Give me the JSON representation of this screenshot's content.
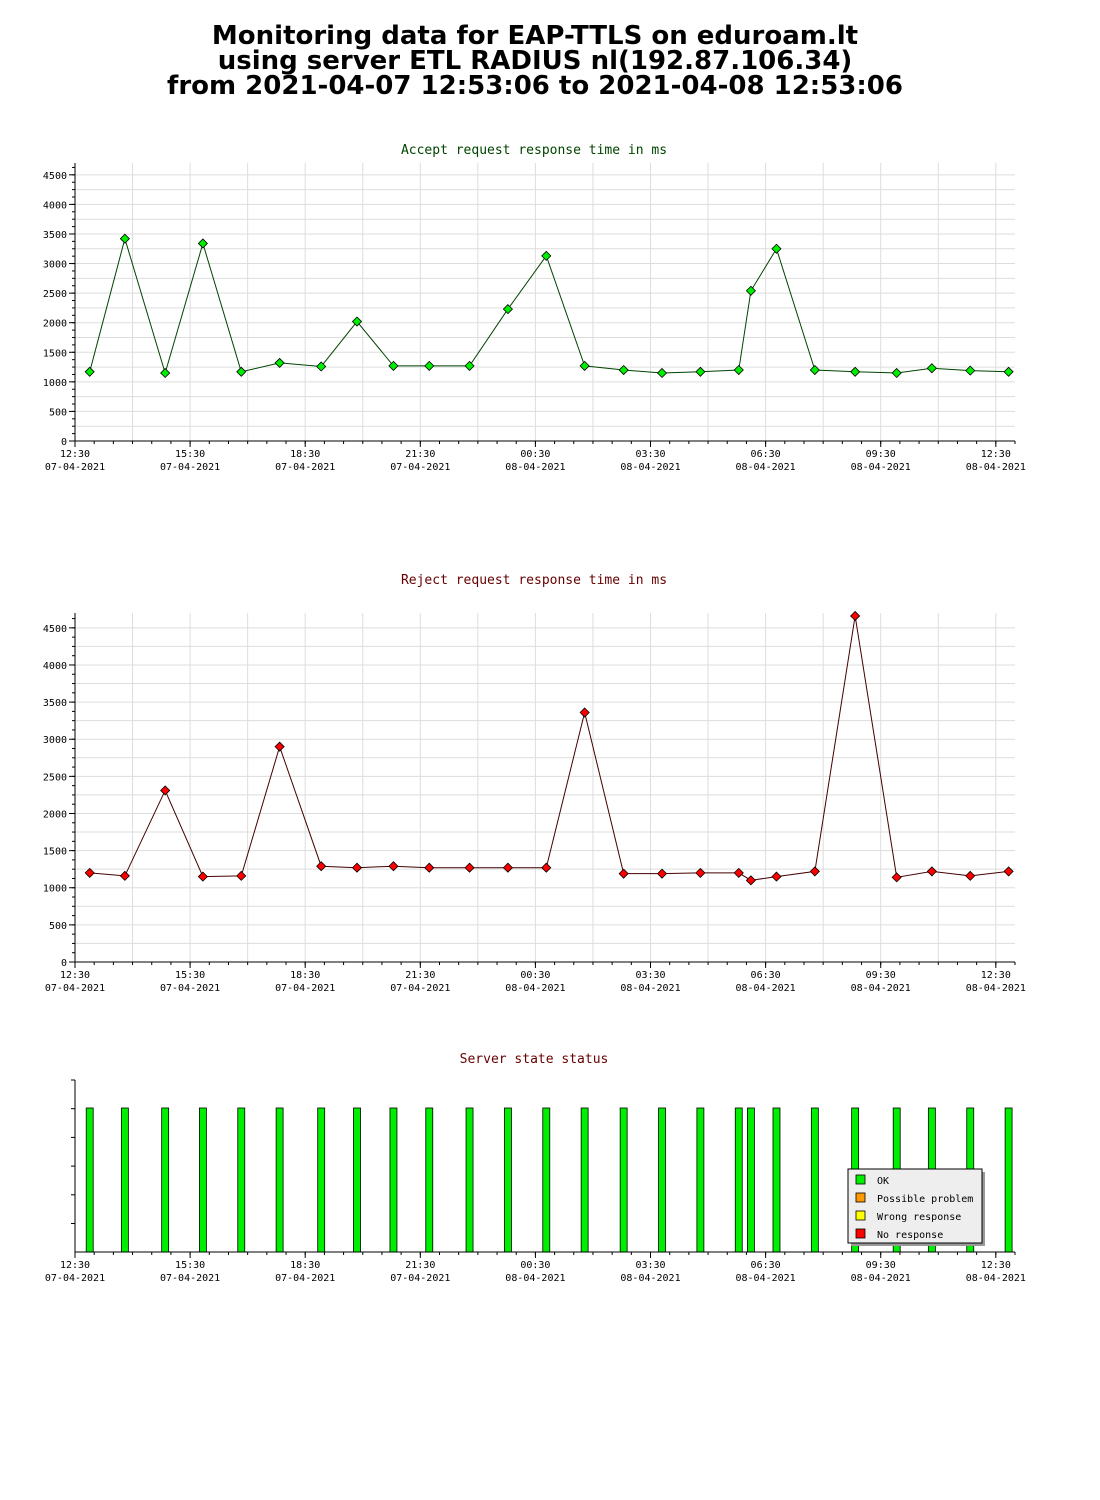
{
  "header": {
    "line1": "Monitoring data for EAP-TTLS on eduroam.lt",
    "line2": "using server ETL RADIUS nl(192.87.106.34)",
    "line3": "from 2021-04-07 12:53:06 to 2021-04-08 12:53:06"
  },
  "colors": {
    "accept_title": "#004400",
    "reject_title": "#660000",
    "status_title": "#660000",
    "accept_marker": "#00ee00",
    "accept_line": "#004400",
    "reject_marker": "#ff0000",
    "reject_line": "#440000",
    "ok": "#00ee00",
    "possible_problem": "#ff9900",
    "wrong_response": "#ffff00",
    "no_response": "#ff0000",
    "grid": "#dddddd"
  },
  "chart_data": [
    {
      "type": "line",
      "title": "Accept request response time in ms",
      "xlabel": "",
      "ylabel": "",
      "ylim": [
        0,
        4700
      ],
      "y_ticks": [
        0,
        500,
        1000,
        1500,
        2000,
        2500,
        3000,
        3500,
        4000,
        4500
      ],
      "x_range_hours": [
        "2021-04-07 12:30",
        "2021-04-08 13:00"
      ],
      "x_ticks": [
        {
          "time": "12:30",
          "date": "07-04-2021"
        },
        {
          "time": "15:30",
          "date": "07-04-2021"
        },
        {
          "time": "18:30",
          "date": "07-04-2021"
        },
        {
          "time": "21:30",
          "date": "07-04-2021"
        },
        {
          "time": "00:30",
          "date": "08-04-2021"
        },
        {
          "time": "03:30",
          "date": "08-04-2021"
        },
        {
          "time": "06:30",
          "date": "08-04-2021"
        },
        {
          "time": "09:30",
          "date": "08-04-2021"
        },
        {
          "time": "12:30",
          "date": "08-04-2021"
        }
      ],
      "grid": true,
      "series": [
        {
          "x": [
            "2021-04-07 12:53",
            "2021-04-07 13:48",
            "2021-04-07 14:51",
            "2021-04-07 15:50",
            "2021-04-07 16:50",
            "2021-04-07 17:50",
            "2021-04-07 18:55",
            "2021-04-07 19:51",
            "2021-04-07 20:48",
            "2021-04-07 21:44",
            "2021-04-07 22:47",
            "2021-04-07 23:47",
            "2021-04-08 00:47",
            "2021-04-08 01:47",
            "2021-04-08 02:48",
            "2021-04-08 03:48",
            "2021-04-08 04:48",
            "2021-04-08 05:48",
            "2021-04-08 06:07",
            "2021-04-08 06:47",
            "2021-04-08 07:47",
            "2021-04-08 08:50",
            "2021-04-08 09:55",
            "2021-04-08 10:50",
            "2021-04-08 11:50",
            "2021-04-08 12:50"
          ],
          "values": [
            1170,
            3420,
            1150,
            3340,
            1170,
            1320,
            1260,
            2020,
            1270,
            1270,
            1270,
            2230,
            3130,
            1270,
            1200,
            1150,
            1170,
            1200,
            2540,
            3250,
            1200,
            1170,
            1150,
            1230,
            1190,
            1170
          ]
        }
      ]
    },
    {
      "type": "line",
      "title": "Reject request response time in ms",
      "xlabel": "",
      "ylabel": "",
      "ylim": [
        0,
        4700
      ],
      "y_ticks": [
        0,
        500,
        1000,
        1500,
        2000,
        2500,
        3000,
        3500,
        4000,
        4500
      ],
      "x_range_hours": [
        "2021-04-07 12:30",
        "2021-04-08 13:00"
      ],
      "x_ticks": [
        {
          "time": "12:30",
          "date": "07-04-2021"
        },
        {
          "time": "15:30",
          "date": "07-04-2021"
        },
        {
          "time": "18:30",
          "date": "07-04-2021"
        },
        {
          "time": "21:30",
          "date": "07-04-2021"
        },
        {
          "time": "00:30",
          "date": "08-04-2021"
        },
        {
          "time": "03:30",
          "date": "08-04-2021"
        },
        {
          "time": "06:30",
          "date": "08-04-2021"
        },
        {
          "time": "09:30",
          "date": "08-04-2021"
        },
        {
          "time": "12:30",
          "date": "08-04-2021"
        }
      ],
      "grid": true,
      "series": [
        {
          "x": [
            "2021-04-07 12:53",
            "2021-04-07 13:48",
            "2021-04-07 14:51",
            "2021-04-07 15:50",
            "2021-04-07 16:50",
            "2021-04-07 17:50",
            "2021-04-07 18:55",
            "2021-04-07 19:51",
            "2021-04-07 20:48",
            "2021-04-07 21:44",
            "2021-04-07 22:47",
            "2021-04-07 23:47",
            "2021-04-08 00:47",
            "2021-04-08 01:47",
            "2021-04-08 02:48",
            "2021-04-08 03:48",
            "2021-04-08 04:48",
            "2021-04-08 05:48",
            "2021-04-08 06:07",
            "2021-04-08 06:47",
            "2021-04-08 07:47",
            "2021-04-08 08:50",
            "2021-04-08 09:55",
            "2021-04-08 10:50",
            "2021-04-08 11:50",
            "2021-04-08 12:50"
          ],
          "values": [
            1200,
            1160,
            2310,
            1150,
            1160,
            2900,
            1290,
            1270,
            1290,
            1270,
            1270,
            1270,
            1270,
            3360,
            1190,
            1190,
            1200,
            1200,
            1100,
            1150,
            1220,
            4660,
            1140,
            1220,
            1160,
            1220
          ]
        }
      ]
    },
    {
      "type": "bar",
      "title": "Server state status",
      "xlabel": "",
      "ylabel": "",
      "x_range_hours": [
        "2021-04-07 12:30",
        "2021-04-08 13:00"
      ],
      "x_ticks": [
        {
          "time": "12:30",
          "date": "07-04-2021"
        },
        {
          "time": "15:30",
          "date": "07-04-2021"
        },
        {
          "time": "18:30",
          "date": "07-04-2021"
        },
        {
          "time": "21:30",
          "date": "07-04-2021"
        },
        {
          "time": "00:30",
          "date": "08-04-2021"
        },
        {
          "time": "03:30",
          "date": "08-04-2021"
        },
        {
          "time": "06:30",
          "date": "08-04-2021"
        },
        {
          "time": "09:30",
          "date": "08-04-2021"
        },
        {
          "time": "12:30",
          "date": "08-04-2021"
        }
      ],
      "grid": false,
      "legend_position": "bottom-right",
      "legend": [
        {
          "label": "OK",
          "color": "#00ee00"
        },
        {
          "label": "Possible problem",
          "color": "#ff9900"
        },
        {
          "label": "Wrong response",
          "color": "#ffff00"
        },
        {
          "label": "No response",
          "color": "#ff0000"
        }
      ],
      "series": [
        {
          "name": "OK",
          "x": [
            "2021-04-07 12:53",
            "2021-04-07 13:48",
            "2021-04-07 14:51",
            "2021-04-07 15:50",
            "2021-04-07 16:50",
            "2021-04-07 17:50",
            "2021-04-07 18:55",
            "2021-04-07 19:51",
            "2021-04-07 20:48",
            "2021-04-07 21:44",
            "2021-04-07 22:47",
            "2021-04-07 23:47",
            "2021-04-08 00:47",
            "2021-04-08 01:47",
            "2021-04-08 02:48",
            "2021-04-08 03:48",
            "2021-04-08 04:48",
            "2021-04-08 05:48",
            "2021-04-08 06:07",
            "2021-04-08 06:47",
            "2021-04-08 07:47",
            "2021-04-08 08:50",
            "2021-04-08 09:55",
            "2021-04-08 10:50",
            "2021-04-08 11:50",
            "2021-04-08 12:50"
          ],
          "status": [
            "OK",
            "OK",
            "OK",
            "OK",
            "OK",
            "OK",
            "OK",
            "OK",
            "OK",
            "OK",
            "OK",
            "OK",
            "OK",
            "OK",
            "OK",
            "OK",
            "OK",
            "OK",
            "OK",
            "OK",
            "OK",
            "OK",
            "OK",
            "OK",
            "OK",
            "OK"
          ]
        }
      ]
    }
  ]
}
